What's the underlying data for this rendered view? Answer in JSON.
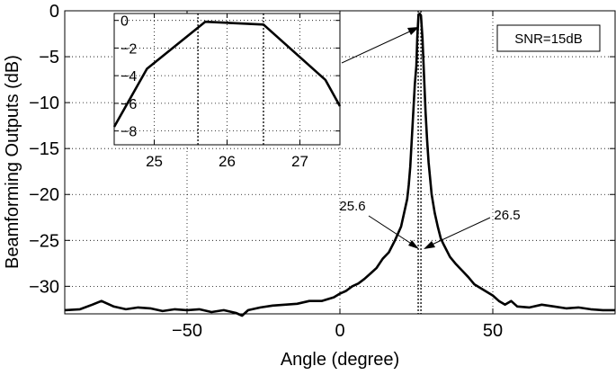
{
  "chart_data": {
    "type": "line",
    "xlabel": "Angle (degree)",
    "ylabel": "Beamforming Outputs (dB)",
    "xlim": [
      -90,
      90
    ],
    "ylim": [
      -33,
      0
    ],
    "xticks": [
      -50,
      0,
      50
    ],
    "xtick_labels": [
      "−50",
      "0",
      "50"
    ],
    "yticks": [
      0,
      -5,
      -10,
      -15,
      -20,
      -25,
      -30
    ],
    "ytick_labels": [
      "0",
      "−5",
      "−10",
      "−15",
      "−20",
      "−25",
      "−30"
    ],
    "grid": true,
    "legend_box": "SNR=15dB",
    "series": [
      {
        "x": [
          -90,
          -85,
          -81,
          -78,
          -74,
          -70,
          -66,
          -62,
          -58,
          -54,
          -50,
          -46,
          -42,
          -38,
          -34,
          -32,
          -30,
          -26,
          -22,
          -18,
          -14,
          -10,
          -6,
          -2,
          0,
          2,
          4,
          6,
          8,
          10,
          12,
          14,
          16,
          18,
          20,
          21,
          22,
          22.5,
          23,
          23.5,
          24,
          24.5,
          25,
          25.3,
          25.7,
          26.1,
          26.5,
          27,
          27.5,
          28,
          28.5,
          29,
          30,
          31,
          32,
          33,
          34,
          36,
          38,
          40,
          42,
          44,
          46,
          48,
          50,
          52,
          54,
          56,
          58,
          62,
          66,
          70,
          74,
          78,
          82,
          86,
          90
        ],
        "y": [
          -32.6,
          -32.5,
          -32.0,
          -31.6,
          -32.2,
          -32.5,
          -32.3,
          -32.4,
          -32.7,
          -32.5,
          -32.6,
          -32.5,
          -32.8,
          -32.6,
          -32.9,
          -33.2,
          -32.6,
          -32.3,
          -32.1,
          -32.0,
          -31.9,
          -31.6,
          -31.6,
          -31.2,
          -30.8,
          -30.5,
          -30.0,
          -29.7,
          -29.2,
          -28.6,
          -28.0,
          -27.0,
          -26.3,
          -25.0,
          -23.5,
          -22.0,
          -20.5,
          -19.0,
          -17.0,
          -14.0,
          -11.0,
          -8.0,
          -6.0,
          -3.0,
          -0.4,
          -0.3,
          -0.5,
          -3.0,
          -7.0,
          -11.0,
          -14.0,
          -16.5,
          -20.0,
          -22.0,
          -23.5,
          -24.8,
          -25.5,
          -26.8,
          -27.6,
          -28.3,
          -29.0,
          -29.8,
          -30.2,
          -30.6,
          -31.0,
          -31.6,
          -32.0,
          -31.6,
          -32.2,
          -32.3,
          -32.0,
          -32.2,
          -32.4,
          -32.3,
          -32.5,
          -32.6,
          -32.6
        ]
      }
    ],
    "markers": [
      {
        "x": 25.6,
        "label": "25.6"
      },
      {
        "x": 26.5,
        "label": "26.5"
      }
    ],
    "inset": {
      "xlim": [
        24.45,
        27.55
      ],
      "ylim": [
        -9,
        0.5
      ],
      "xticks": [
        25,
        26,
        27
      ],
      "xtick_labels": [
        "25",
        "26",
        "27"
      ],
      "yticks": [
        0,
        -2,
        -4,
        -6,
        -8
      ],
      "ytick_labels": [
        "0",
        "−2",
        "−4",
        "−6",
        "−8"
      ],
      "markers_x": [
        25.6,
        26.5
      ],
      "x": [
        24.45,
        24.9,
        25.7,
        26.5,
        27.35,
        27.55
      ],
      "y": [
        -7.7,
        -3.5,
        -0.1,
        -0.3,
        -4.3,
        -6.2
      ]
    }
  }
}
